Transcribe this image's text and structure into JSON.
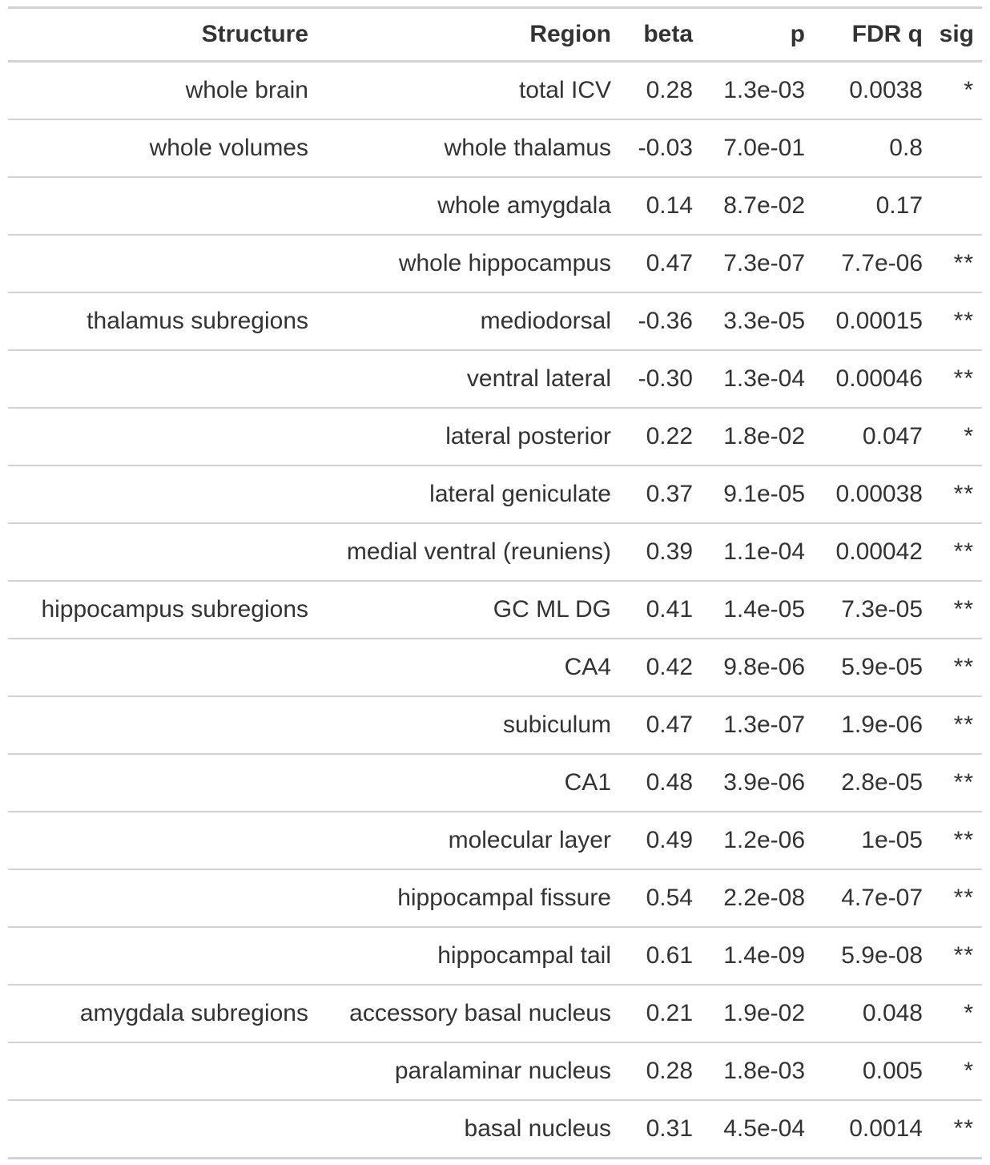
{
  "table": {
    "headers": [
      "Structure",
      "Region",
      "beta",
      "p",
      "FDR q",
      "sig"
    ],
    "rows": [
      {
        "structure": "whole brain",
        "region": "total ICV",
        "beta": "0.28",
        "p": "1.3e-03",
        "fdr_q": "0.0038",
        "sig": "*"
      },
      {
        "structure": "whole volumes",
        "region": "whole thalamus",
        "beta": "-0.03",
        "p": "7.0e-01",
        "fdr_q": "0.8",
        "sig": ""
      },
      {
        "structure": "",
        "region": "whole amygdala",
        "beta": "0.14",
        "p": "8.7e-02",
        "fdr_q": "0.17",
        "sig": ""
      },
      {
        "structure": "",
        "region": "whole hippocampus",
        "beta": "0.47",
        "p": "7.3e-07",
        "fdr_q": "7.7e-06",
        "sig": "**"
      },
      {
        "structure": "thalamus subregions",
        "region": "mediodorsal",
        "beta": "-0.36",
        "p": "3.3e-05",
        "fdr_q": "0.00015",
        "sig": "**"
      },
      {
        "structure": "",
        "region": "ventral lateral",
        "beta": "-0.30",
        "p": "1.3e-04",
        "fdr_q": "0.00046",
        "sig": "**"
      },
      {
        "structure": "",
        "region": "lateral posterior",
        "beta": "0.22",
        "p": "1.8e-02",
        "fdr_q": "0.047",
        "sig": "*"
      },
      {
        "structure": "",
        "region": "lateral geniculate",
        "beta": "0.37",
        "p": "9.1e-05",
        "fdr_q": "0.00038",
        "sig": "**"
      },
      {
        "structure": "",
        "region": "medial ventral (reuniens)",
        "beta": "0.39",
        "p": "1.1e-04",
        "fdr_q": "0.00042",
        "sig": "**"
      },
      {
        "structure": "hippocampus subregions",
        "region": "GC ML DG",
        "beta": "0.41",
        "p": "1.4e-05",
        "fdr_q": "7.3e-05",
        "sig": "**"
      },
      {
        "structure": "",
        "region": "CA4",
        "beta": "0.42",
        "p": "9.8e-06",
        "fdr_q": "5.9e-05",
        "sig": "**"
      },
      {
        "structure": "",
        "region": "subiculum",
        "beta": "0.47",
        "p": "1.3e-07",
        "fdr_q": "1.9e-06",
        "sig": "**"
      },
      {
        "structure": "",
        "region": "CA1",
        "beta": "0.48",
        "p": "3.9e-06",
        "fdr_q": "2.8e-05",
        "sig": "**"
      },
      {
        "structure": "",
        "region": "molecular layer",
        "beta": "0.49",
        "p": "1.2e-06",
        "fdr_q": "1e-05",
        "sig": "**"
      },
      {
        "structure": "",
        "region": "hippocampal fissure",
        "beta": "0.54",
        "p": "2.2e-08",
        "fdr_q": "4.7e-07",
        "sig": "**"
      },
      {
        "structure": "",
        "region": "hippocampal tail",
        "beta": "0.61",
        "p": "1.4e-09",
        "fdr_q": "5.9e-08",
        "sig": "**"
      },
      {
        "structure": "amygdala subregions",
        "region": "accessory basal nucleus",
        "beta": "0.21",
        "p": "1.9e-02",
        "fdr_q": "0.048",
        "sig": "*"
      },
      {
        "structure": "",
        "region": "paralaminar nucleus",
        "beta": "0.28",
        "p": "1.8e-03",
        "fdr_q": "0.005",
        "sig": "*"
      },
      {
        "structure": "",
        "region": "basal nucleus",
        "beta": "0.31",
        "p": "4.5e-04",
        "fdr_q": "0.0014",
        "sig": "**"
      }
    ]
  },
  "colors": {
    "text": "#333333",
    "rule": "#d3d3d3",
    "background": "#ffffff"
  }
}
